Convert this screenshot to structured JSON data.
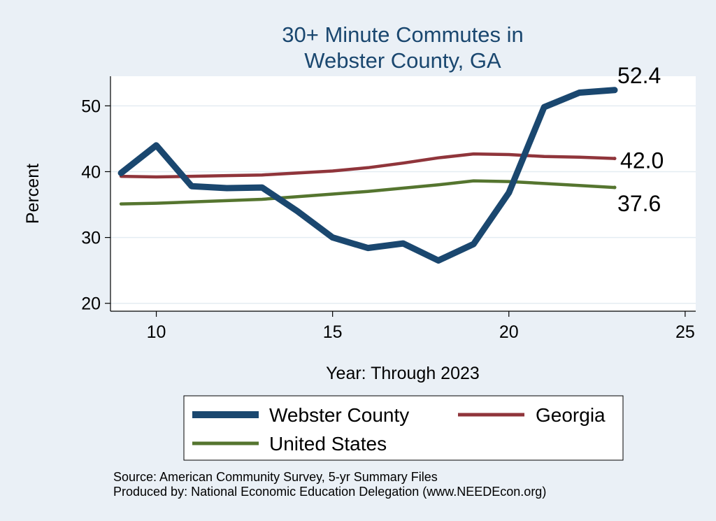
{
  "chart_data": {
    "type": "line",
    "title_lines": [
      "30+ Minute Commutes in",
      "Webster County, GA"
    ],
    "xlabel": "Year: Through 2023",
    "ylabel": "Percent",
    "xlim": [
      8.7,
      25.3
    ],
    "ylim": [
      18.8,
      54.5
    ],
    "xticks": [
      10,
      15,
      20,
      25
    ],
    "yticks": [
      20,
      30,
      40,
      50
    ],
    "grid": true,
    "series": [
      {
        "name": "Webster County",
        "color": "#1a476f",
        "x": [
          9,
          10,
          11,
          12,
          13,
          14,
          15,
          16,
          17,
          18,
          19,
          20,
          21,
          22,
          23
        ],
        "values": [
          39.8,
          44.0,
          37.8,
          37.5,
          37.6,
          34.0,
          30.0,
          28.4,
          29.1,
          26.5,
          29.0,
          36.8,
          49.8,
          52.0,
          52.4
        ],
        "end_label": "52.4"
      },
      {
        "name": "Georgia",
        "color": "#90353b",
        "x": [
          9,
          10,
          11,
          12,
          13,
          14,
          15,
          16,
          17,
          18,
          19,
          20,
          21,
          22,
          23
        ],
        "values": [
          39.3,
          39.2,
          39.3,
          39.4,
          39.5,
          39.8,
          40.1,
          40.6,
          41.3,
          42.1,
          42.7,
          42.6,
          42.3,
          42.2,
          42.0
        ],
        "end_label": "42.0"
      },
      {
        "name": "United States",
        "color": "#55752f",
        "x": [
          9,
          10,
          11,
          12,
          13,
          14,
          15,
          16,
          17,
          18,
          19,
          20,
          21,
          22,
          23
        ],
        "values": [
          35.1,
          35.2,
          35.4,
          35.6,
          35.8,
          36.2,
          36.6,
          37.0,
          37.5,
          38.0,
          38.6,
          38.5,
          38.2,
          37.9,
          37.6
        ],
        "end_label": "37.6"
      }
    ],
    "legend": [
      "Webster County",
      "Georgia",
      "United States"
    ],
    "legend_position": "bottom"
  },
  "footer": {
    "source": "Source: American Community Survey, 5-yr Summary Files",
    "produced": "Produced by: National Economic Education Delegation (www.NEEDEcon.org)"
  },
  "colors": {
    "background": "#eaf0f6",
    "plot_background": "#ffffff",
    "title": "#1a476f",
    "grid": "#e4ecf2"
  }
}
